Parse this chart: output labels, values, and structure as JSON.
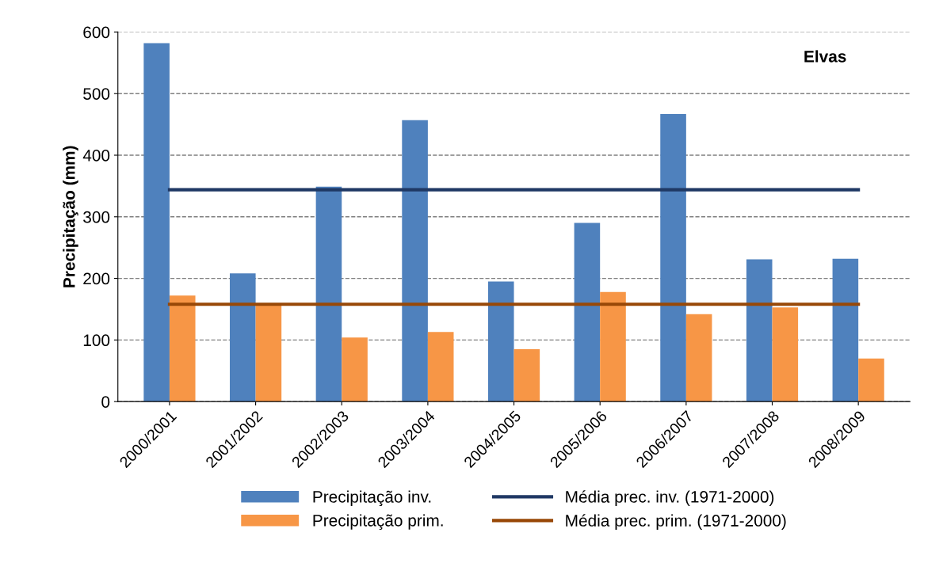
{
  "chart_data": {
    "type": "bar",
    "ylabel": "Precipitação (mm)",
    "categories": [
      "2000/2001",
      "2001/2002",
      "2002/2003",
      "2003/2004",
      "2004/2005",
      "2005/2006",
      "2006/2007",
      "2007/2008",
      "2008/2009"
    ],
    "series": [
      {
        "name": "Precipitação inv.",
        "color": "#4f81bd",
        "values": [
          582,
          208,
          349,
          457,
          195,
          290,
          467,
          231,
          232
        ]
      },
      {
        "name": "Precipitação prim.",
        "color": "#f79646",
        "values": [
          172,
          159,
          104,
          113,
          85,
          178,
          142,
          153,
          70
        ]
      },
      {
        "name": "Média prec. inv. (1971-2000)",
        "type": "line",
        "color": "#1f3864",
        "values": [
          344,
          344,
          344,
          344,
          344,
          344,
          344,
          344,
          344
        ]
      },
      {
        "name": "Média prec. prim. (1971-2000)",
        "type": "line",
        "color": "#984807",
        "values": [
          158,
          158,
          158,
          158,
          158,
          158,
          158,
          158,
          158
        ]
      }
    ],
    "annotations": [
      "Elvas"
    ],
    "ylim": [
      0,
      600
    ],
    "yticks": [
      0,
      100,
      200,
      300,
      400,
      500,
      600
    ],
    "grid": "y",
    "legend": "bottom",
    "marker": "none",
    "line_style": "solid"
  }
}
